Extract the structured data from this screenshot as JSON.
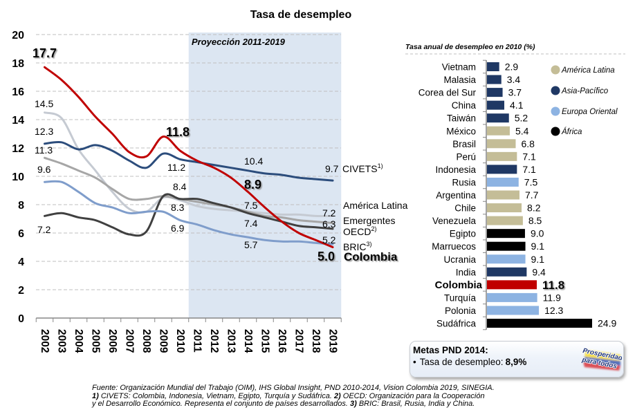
{
  "title": "Tasa de desempleo",
  "chart_data": [
    {
      "type": "line",
      "title": "Tasa de desempleo",
      "xlabel": "",
      "ylabel": "",
      "x": [
        2002,
        2003,
        2004,
        2005,
        2006,
        2007,
        2008,
        2009,
        2010,
        2011,
        2012,
        2013,
        2014,
        2015,
        2016,
        2017,
        2018,
        2019
      ],
      "ylim": [
        0,
        20
      ],
      "yticks": [
        0,
        2,
        4,
        6,
        8,
        10,
        12,
        14,
        16,
        18,
        20
      ],
      "grid": true,
      "projection": {
        "label": "Proyección 2011-2019",
        "from": 2011,
        "to": 2019
      },
      "series": [
        {
          "name": "América Latina",
          "footnote": null,
          "color": "#C5CAD2",
          "values": [
            14.5,
            14.1,
            11.9,
            10.4,
            8.9,
            7.7,
            7.5,
            8.5,
            8.3,
            7.9,
            7.7,
            7.6,
            7.5,
            7.4,
            7.3,
            7.3,
            7.2,
            7.2
          ]
        },
        {
          "name": "Emergentes",
          "footnote": null,
          "color": "#A6A6A6",
          "values": [
            11.3,
            10.9,
            10.4,
            9.9,
            9.1,
            8.4,
            8.4,
            8.6,
            8.4,
            8.2,
            8.0,
            7.8,
            7.5,
            7.2,
            7.1,
            6.9,
            6.8,
            6.7
          ]
        },
        {
          "name": "OECD",
          "footnote": "2)",
          "color": "#404040",
          "values": [
            7.2,
            7.4,
            7.1,
            6.9,
            6.4,
            5.9,
            6.1,
            8.6,
            8.4,
            8.4,
            8.1,
            7.8,
            7.4,
            7.1,
            6.8,
            6.5,
            6.4,
            6.3
          ]
        },
        {
          "name": "BRIC",
          "footnote": "3)",
          "color": "#7F9DCB",
          "values": [
            9.6,
            9.6,
            8.9,
            8.1,
            7.8,
            7.4,
            7.5,
            7.5,
            6.9,
            6.6,
            6.2,
            5.9,
            5.7,
            5.5,
            5.4,
            5.4,
            5.3,
            5.2
          ]
        },
        {
          "name": "CIVETS",
          "footnote": "1)",
          "color": "#2C4D7C",
          "values": [
            12.3,
            12.4,
            11.9,
            12.2,
            11.8,
            11.1,
            10.6,
            11.6,
            11.2,
            11.0,
            10.8,
            10.6,
            10.4,
            10.2,
            10.1,
            9.9,
            9.8,
            9.7
          ]
        },
        {
          "name": "Colombia",
          "footnote": null,
          "color": "#C00000",
          "values": [
            17.7,
            16.8,
            15.6,
            14.2,
            13.0,
            11.7,
            11.4,
            12.8,
            11.8,
            11.1,
            10.6,
            9.9,
            8.9,
            7.8,
            6.8,
            6.0,
            5.5,
            5.0
          ]
        }
      ],
      "data_labels": [
        {
          "series": "Colombia",
          "year": 2002,
          "text": "17.7"
        },
        {
          "series": "América Latina",
          "year": 2002,
          "text": "14.5"
        },
        {
          "series": "CIVETS",
          "year": 2002,
          "text": "12.3"
        },
        {
          "series": "Emergentes",
          "year": 2002,
          "text": "11.3"
        },
        {
          "series": "BRIC",
          "year": 2002,
          "text": "9.6"
        },
        {
          "series": "OECD",
          "year": 2002,
          "text": "7.2"
        },
        {
          "series": "Colombia",
          "year": 2010,
          "text": "11.8"
        },
        {
          "series": "CIVETS",
          "year": 2010,
          "text": "11.2"
        },
        {
          "series": "OECD",
          "year": 2010,
          "text": "8.4"
        },
        {
          "series": "América Latina",
          "year": 2010,
          "text": "8.3"
        },
        {
          "series": "BRIC",
          "year": 2010,
          "text": "6.9"
        },
        {
          "series": "CIVETS",
          "year": 2014,
          "text": "10.4"
        },
        {
          "series": "Colombia",
          "year": 2014,
          "text": "8.9"
        },
        {
          "series": "América Latina",
          "year": 2014,
          "text": "7.5"
        },
        {
          "series": "OECD",
          "year": 2014,
          "text": "7.4"
        },
        {
          "series": "BRIC",
          "year": 2014,
          "text": "5.7"
        },
        {
          "series": "CIVETS",
          "year": 2019,
          "text": "9.7"
        },
        {
          "series": "América Latina",
          "year": 2019,
          "text": "7.2"
        },
        {
          "series": "OECD",
          "year": 2019,
          "text": "6.3"
        },
        {
          "series": "BRIC",
          "year": 2019,
          "text": "5.2"
        },
        {
          "series": "Colombia",
          "year": 2019,
          "text": "5.0"
        }
      ]
    },
    {
      "type": "bar",
      "orientation": "horizontal",
      "title": "Tasa anual de desempleo  en 2010 (%)",
      "categories": [
        "Vietnam",
        "Malasia",
        "Corea del Sur",
        "China",
        "Taiwán",
        "México",
        "Brasil",
        "Perú",
        "Indonesia",
        "Rusia",
        "Argentina",
        "Chile",
        "Venezuela",
        "Egipto",
        "Marruecos",
        "Ucrania",
        "India",
        "Colombia",
        "Turquía",
        "Polonia",
        "Sudáfrica"
      ],
      "values": [
        2.9,
        3.4,
        3.7,
        4.1,
        5.2,
        5.4,
        6.8,
        7.1,
        7.1,
        7.5,
        7.7,
        8.2,
        8.5,
        9.0,
        9.1,
        9.1,
        9.4,
        11.8,
        11.9,
        12.3,
        24.9
      ],
      "value_labels": [
        "2.9",
        "3.4",
        "3.7",
        "4.1",
        "5.2",
        "5.4",
        "6.8",
        "7.1",
        "7.1",
        "7.5",
        "7.7",
        "8.2",
        "8.5",
        "9.0",
        "9.1",
        "9.1",
        "9.4",
        "11.8",
        "11.9",
        "12.3",
        "24.9"
      ],
      "regions": [
        "Asia-Pacífico",
        "Asia-Pacífico",
        "Asia-Pacífico",
        "Asia-Pacífico",
        "Asia-Pacífico",
        "América Latina",
        "América Latina",
        "América Latina",
        "Asia-Pacífico",
        "Europa Oriental",
        "América Latina",
        "América Latina",
        "América Latina",
        "África",
        "África",
        "Europa Oriental",
        "Asia-Pacífico",
        "América Latina",
        "Europa Oriental",
        "Europa Oriental",
        "África"
      ],
      "legend": [
        {
          "name": "América Latina",
          "color": "#C4BD97"
        },
        {
          "name": "Asia-Pacífico",
          "color": "#1F3864"
        },
        {
          "name": "Europa Oriental",
          "color": "#8DB3E2"
        },
        {
          "name": "África",
          "color": "#000000"
        }
      ],
      "highlight": {
        "category": "Colombia",
        "color": "#C00000"
      }
    }
  ],
  "metas": {
    "title": "Metas PND 2014:",
    "bullet": "•",
    "item_label": "Tasa de desempleo:",
    "item_value": "8,9%"
  },
  "logo": {
    "line1": "Prosperidad",
    "line2": "para todos"
  },
  "footer": {
    "source": "Fuente: Organización Mundial del Trabajo (OIM), IHS Global Insight, PND 2010-2014, Vision Colombia 2019, SINEGIA.",
    "note1_marker": "1)",
    "note1_text": " CIVETS:  Colombia, Indonesia, Vietnam,  Egipto, Turquía y Sudáfrica. ",
    "note2_marker": "2)",
    "note2_text": " OECD: Organización para la Cooperación",
    "note2_text_cont": "y el Desarrollo Económico.  Representa  el conjunto de países desarrollados. ",
    "note3_marker": "3)",
    "note3_text": " BRIC: Brasil,  Rusia, India y China."
  }
}
